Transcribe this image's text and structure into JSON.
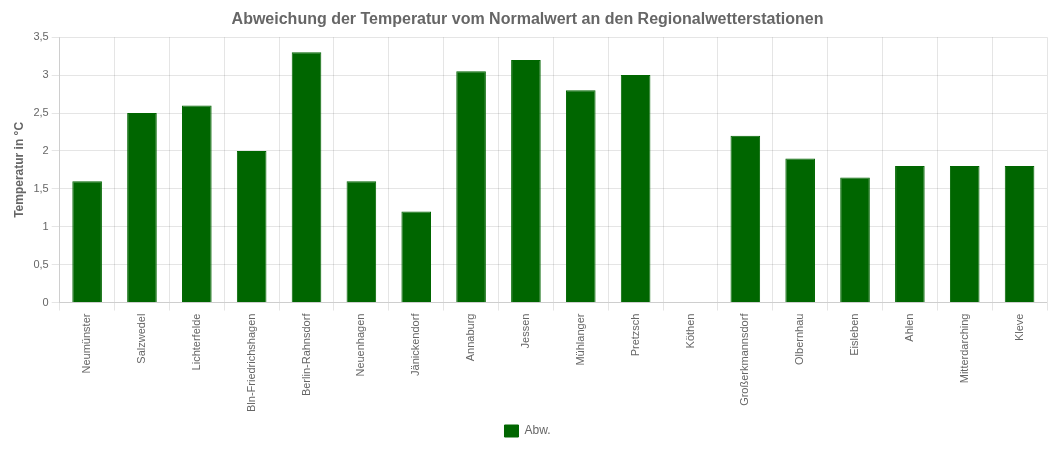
{
  "chart_data": {
    "type": "bar",
    "title": "Abweichung der Temperatur vom Normalwert an den Regionalwetterstationen",
    "ylabel": "Temperatur in °C",
    "categories": [
      "Neumünster",
      "Salzwedel",
      "Lichterfelde",
      "Bln-Friedrichshagen",
      "Berlin-Rahnsdorf",
      "Neuenhagen",
      "Jänickendorf",
      "Annaburg",
      "Jessen",
      "Mühlanger",
      "Pretzsch",
      "Köthen",
      "Großerkmannsdorf",
      "Olbernhau",
      "Eisleben",
      "Ahlen",
      "Mitterdarching",
      "Kleve"
    ],
    "series": [
      {
        "name": "Abw.",
        "color": "#006600",
        "values": [
          1.6,
          2.5,
          2.6,
          2.0,
          3.3,
          1.6,
          1.2,
          3.05,
          3.2,
          2.8,
          3.0,
          0.0,
          2.2,
          1.9,
          1.65,
          1.8,
          1.8,
          1.8
        ]
      }
    ],
    "ylim": [
      0,
      3.5
    ],
    "yticks": [
      0,
      {
        "value": 0.5,
        "label": "0,5"
      },
      1,
      {
        "value": 1.5,
        "label": "1,5"
      },
      2,
      {
        "value": 2.5,
        "label": "2,5"
      },
      3,
      {
        "value": 3.5,
        "label": "3,5"
      }
    ],
    "grid": true,
    "legend": "bottom"
  }
}
